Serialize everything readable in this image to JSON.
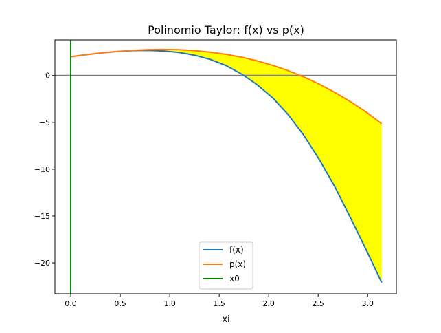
{
  "chart_data": {
    "type": "line",
    "title": "Polinomio Taylor: f(x) vs p(x)",
    "xlabel": "xi",
    "ylabel": "",
    "xlim": [
      -0.16,
      3.29
    ],
    "ylim": [
      -23.3,
      3.8
    ],
    "xticks": [
      0.0,
      0.5,
      1.0,
      1.5,
      2.0,
      2.5,
      3.0
    ],
    "xtick_labels": [
      "0.0",
      "0.5",
      "1.0",
      "1.5",
      "2.0",
      "2.5",
      "3.0"
    ],
    "yticks": [
      0,
      -5,
      -10,
      -15,
      -20
    ],
    "ytick_labels": [
      "0",
      "−5",
      "−10",
      "−15",
      "−20"
    ],
    "grid": false,
    "legend_placement": "lower-center",
    "x": [
      0,
      0.157,
      0.314,
      0.471,
      0.628,
      0.785,
      0.942,
      1.1,
      1.257,
      1.414,
      1.571,
      1.728,
      1.885,
      2.042,
      2.199,
      2.356,
      2.513,
      2.67,
      2.827,
      2.985,
      3.142
    ],
    "series": [
      {
        "name": "f(x)",
        "color": "#1f77b4",
        "values": [
          2.0,
          2.22,
          2.41,
          2.56,
          2.66,
          2.68,
          2.62,
          2.45,
          2.15,
          1.7,
          1.05,
          0.15,
          -1.0,
          -2.4,
          -4.2,
          -6.4,
          -9.0,
          -11.9,
          -15.2,
          -18.6,
          -22.1
        ]
      },
      {
        "name": "p(x)",
        "color": "#ff7f0e",
        "values": [
          2.0,
          2.22,
          2.42,
          2.57,
          2.69,
          2.76,
          2.78,
          2.75,
          2.65,
          2.49,
          2.26,
          1.95,
          1.56,
          1.08,
          0.51,
          -0.16,
          -0.93,
          -1.81,
          -2.8,
          -3.9,
          -5.15
        ]
      },
      {
        "name": "x0",
        "color": "#008000",
        "type": "vline",
        "x": 0
      }
    ],
    "reference_line": {
      "y": 0,
      "color": "#808080"
    },
    "fill_between": {
      "between": [
        "f(x)",
        "p(x)"
      ],
      "color": "#ffff00"
    }
  }
}
